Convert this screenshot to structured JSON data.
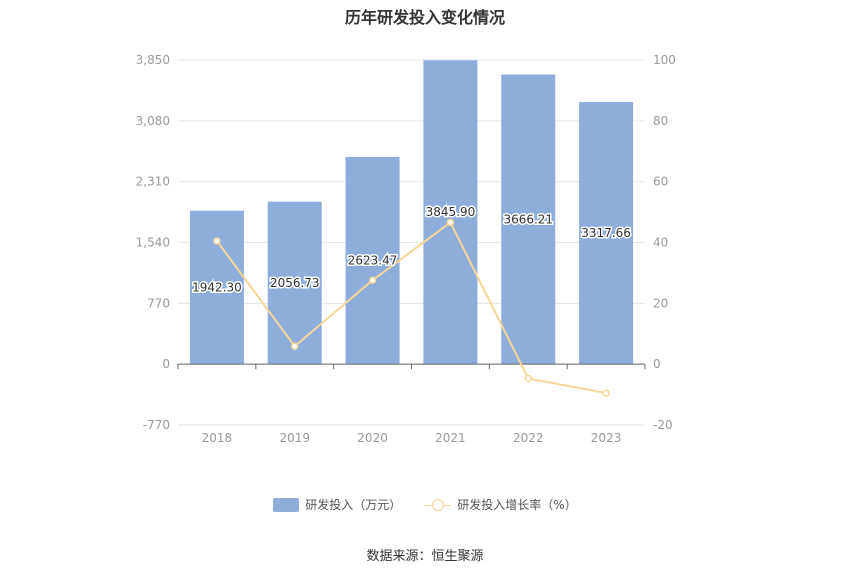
{
  "title": "历年研发投入变化情况",
  "source": "数据来源：恒生聚源",
  "colors": {
    "bar": "#8eadda",
    "line": "#f7d596",
    "grid": "#e6e6e6",
    "axis_text": "#999999"
  },
  "chart_data": {
    "type": "bar",
    "categories": [
      "2018",
      "2019",
      "2020",
      "2021",
      "2022",
      "2023"
    ],
    "series": [
      {
        "name": "研发投入（万元）",
        "type": "bar",
        "axis": "left",
        "values": [
          1942.3,
          2056.73,
          2623.47,
          3845.9,
          3666.21,
          3317.66
        ],
        "labels": [
          "1942.30",
          "2056.73",
          "2623.47",
          "3845.90",
          "3666.21",
          "3317.66"
        ]
      },
      {
        "name": "研发投入增长率（%）",
        "type": "line",
        "axis": "right",
        "values": [
          40.5,
          5.9,
          27.6,
          46.6,
          -4.7,
          -9.5
        ]
      }
    ],
    "y_left": {
      "ylim": [
        -770,
        3850
      ],
      "ticks": [
        "3,850",
        "3,080",
        "2,310",
        "1,540",
        "770",
        "0",
        "-770"
      ]
    },
    "y_right": {
      "ylim": [
        -20,
        100
      ],
      "ticks": [
        "100",
        "80",
        "60",
        "40",
        "20",
        "0",
        "-20"
      ]
    },
    "grid": true,
    "legend_position": "bottom"
  }
}
